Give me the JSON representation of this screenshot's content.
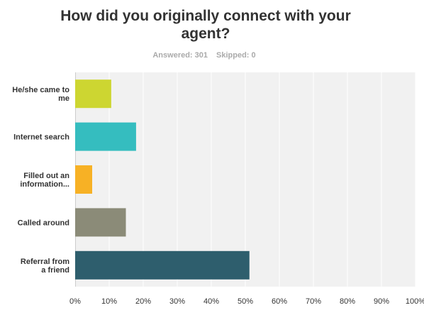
{
  "chart_data": {
    "type": "bar",
    "orientation": "horizontal",
    "title": "How did you originally connect with your agent?",
    "answered": "Answered: 301",
    "skipped": "Skipped: 0",
    "categories": [
      [
        "He/she came to",
        "me"
      ],
      [
        "Internet search"
      ],
      [
        "Filled out an",
        "information..."
      ],
      [
        "Called around"
      ],
      [
        "Referral from",
        "a friend"
      ]
    ],
    "values": [
      10.6,
      17.9,
      5.0,
      14.9,
      51.2
    ],
    "colors": [
      "#cdd631",
      "#35bdbf",
      "#f7b125",
      "#8b8b78",
      "#2e5e6d"
    ],
    "xlim": [
      0,
      100
    ],
    "x_ticks": [
      "0%",
      "10%",
      "20%",
      "30%",
      "40%",
      "50%",
      "60%",
      "70%",
      "80%",
      "90%",
      "100%"
    ],
    "grid": true
  }
}
